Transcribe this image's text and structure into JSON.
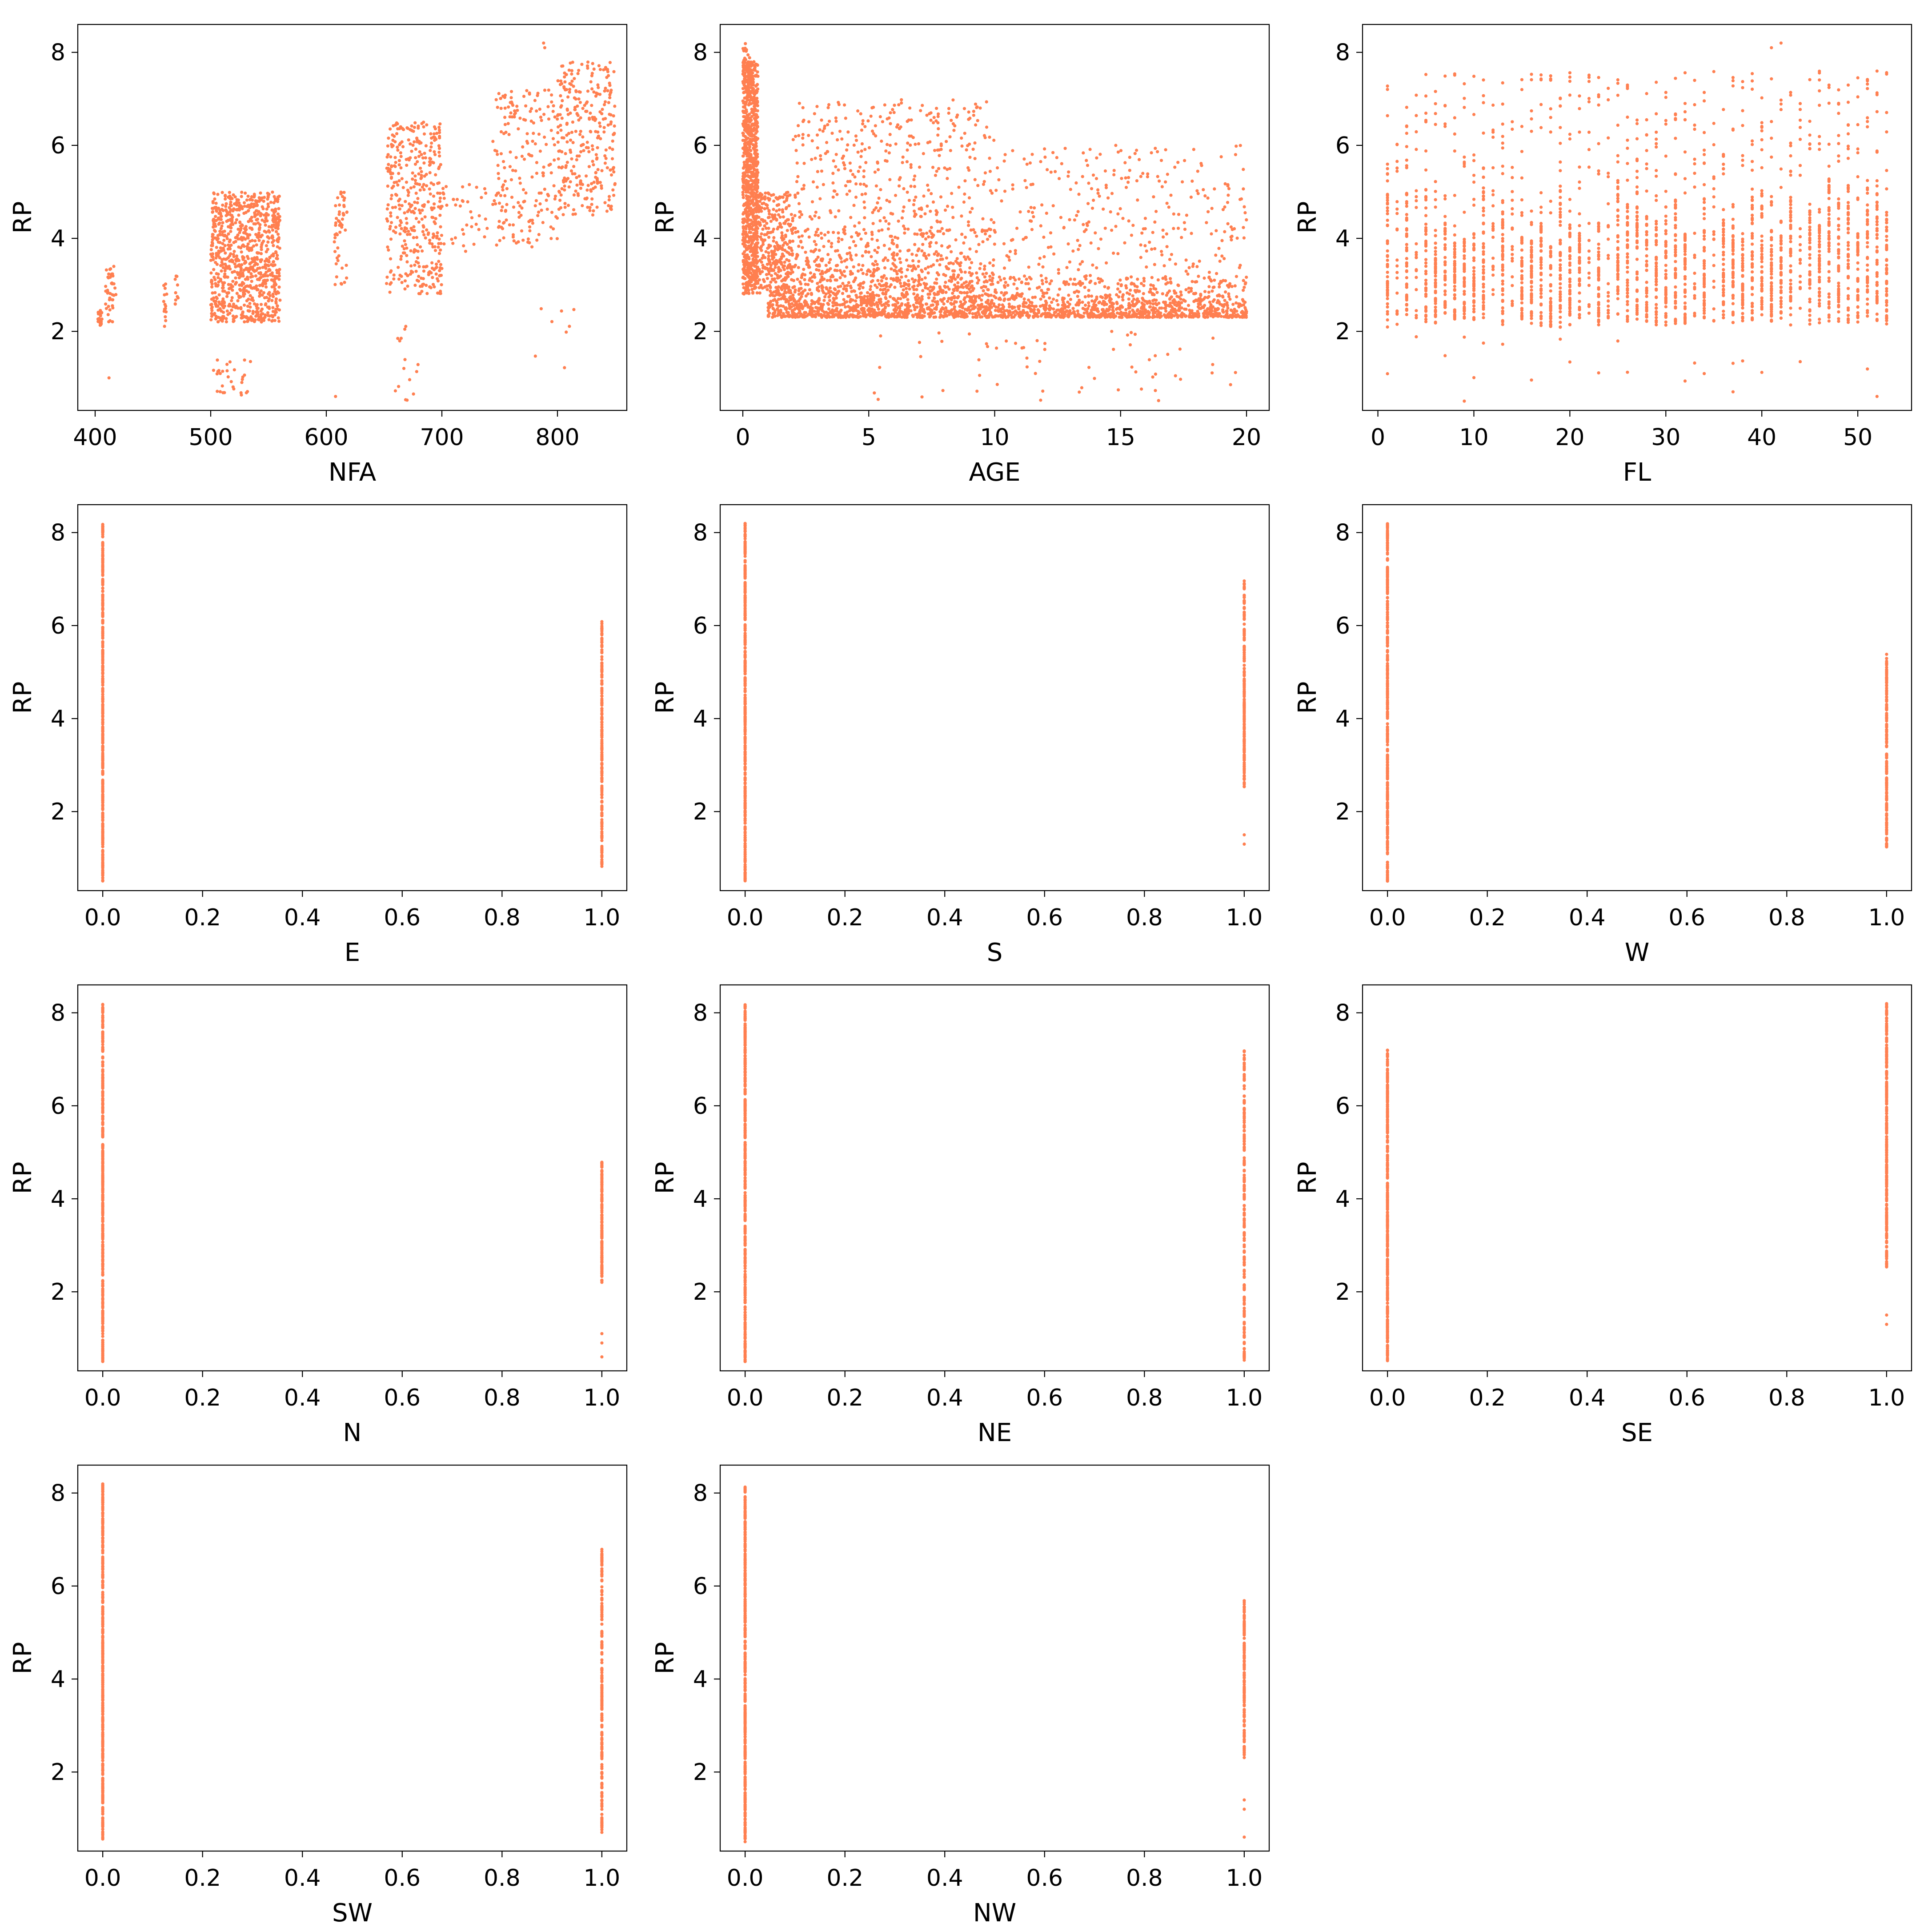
{
  "figure": {
    "marker_color": "#FF7F50",
    "background": "#ffffff"
  },
  "chart_data": [
    {
      "type": "scatter",
      "xlabel": "NFA",
      "ylabel": "RP",
      "xlim": [
        385,
        860
      ],
      "ylim": [
        0.3,
        8.6
      ],
      "xticks": [
        400,
        500,
        600,
        700,
        800
      ],
      "yticks": [
        2,
        4,
        6,
        8
      ],
      "clusters": [
        {
          "x": [
            402,
            406
          ],
          "y": [
            2.1,
            2.45
          ],
          "n": 25
        },
        {
          "x": [
            409,
            418
          ],
          "y": [
            2.2,
            3.4
          ],
          "n": 40
        },
        {
          "x": [
            459,
            462
          ],
          "y": [
            2.1,
            3.1
          ],
          "n": 15
        },
        {
          "x": [
            469,
            472
          ],
          "y": [
            2.5,
            3.2
          ],
          "n": 10
        },
        {
          "x": [
            500,
            560
          ],
          "y": [
            2.2,
            5.0
          ],
          "n": 900
        },
        {
          "x": [
            502,
            535
          ],
          "y": [
            0.6,
            1.5
          ],
          "n": 30
        },
        {
          "x": [
            607,
            618
          ],
          "y": [
            3.0,
            5.0
          ],
          "n": 50
        },
        {
          "x": [
            652,
            700
          ],
          "y": [
            2.8,
            6.5
          ],
          "n": 400
        },
        {
          "x": [
            655,
            680
          ],
          "y": [
            0.5,
            2.2
          ],
          "n": 15
        },
        {
          "x": [
            700,
            740
          ],
          "y": [
            3.7,
            5.2
          ],
          "n": 40
        },
        {
          "x": [
            744,
            800
          ],
          "y": [
            3.8,
            7.2
          ],
          "n": 200
        },
        {
          "x": [
            800,
            850
          ],
          "y": [
            4.5,
            7.8
          ],
          "n": 300
        },
        {
          "x": [
            780,
            820
          ],
          "y": [
            1.2,
            2.6
          ],
          "n": 8
        }
      ],
      "extra_points": [
        {
          "x": 788,
          "y": 8.2
        },
        {
          "x": 789,
          "y": 8.1
        },
        {
          "x": 412,
          "y": 1.0
        },
        {
          "x": 608,
          "y": 0.6
        }
      ]
    },
    {
      "type": "scatter",
      "xlabel": "AGE",
      "ylabel": "RP",
      "xlim": [
        -0.9,
        20.9
      ],
      "ylim": [
        0.3,
        8.6
      ],
      "xticks": [
        0,
        5,
        10,
        15,
        20
      ],
      "yticks": [
        2,
        4,
        6,
        8
      ],
      "clusters": [
        {
          "x": [
            0,
            0.6
          ],
          "y": [
            2.8,
            7.8
          ],
          "n": 900
        },
        {
          "x": [
            0,
            0.3
          ],
          "y": [
            7.0,
            8.2
          ],
          "n": 40
        },
        {
          "x": [
            0.5,
            2
          ],
          "y": [
            2.8,
            5.0
          ],
          "n": 300
        },
        {
          "x": [
            1,
            10
          ],
          "y": [
            2.3,
            4.2
          ],
          "n": 1500
        },
        {
          "x": [
            2,
            10
          ],
          "y": [
            4.0,
            7.0
          ],
          "n": 400
        },
        {
          "x": [
            10,
            20
          ],
          "y": [
            2.3,
            3.2
          ],
          "n": 1000
        },
        {
          "x": [
            10,
            20
          ],
          "y": [
            3.0,
            6.0
          ],
          "n": 300
        },
        {
          "x": [
            5,
            20
          ],
          "y": [
            0.5,
            2.0
          ],
          "n": 60
        }
      ],
      "extra_points": []
    },
    {
      "type": "scatter",
      "xlabel": "FL",
      "ylabel": "RP",
      "xlim": [
        -1.6,
        55.6
      ],
      "ylim": [
        0.3,
        8.6
      ],
      "xticks": [
        0,
        10,
        20,
        30,
        40,
        50
      ],
      "yticks": [
        2,
        4,
        6,
        8
      ],
      "discrete_x": [
        1,
        53
      ],
      "clusters": [],
      "extra_points": [
        {
          "x": 41,
          "y": 8.1
        },
        {
          "x": 42,
          "y": 8.2
        },
        {
          "x": 52,
          "y": 0.6
        },
        {
          "x": 37,
          "y": 0.7
        },
        {
          "x": 9,
          "y": 0.5
        }
      ]
    },
    {
      "type": "scatter",
      "xlabel": "E",
      "ylabel": "RP",
      "xlim": [
        -0.05,
        1.05
      ],
      "ylim": [
        0.3,
        8.6
      ],
      "xticks": [
        0.0,
        0.2,
        0.4,
        0.6,
        0.8,
        1.0
      ],
      "yticks": [
        2,
        4,
        6,
        8
      ],
      "clusters": [
        {
          "x": [
            0,
            0
          ],
          "y": [
            0.5,
            8.2
          ],
          "n": 400
        },
        {
          "x": [
            1,
            1
          ],
          "y": [
            0.8,
            6.1
          ],
          "n": 200
        }
      ],
      "extra_points": []
    },
    {
      "type": "scatter",
      "xlabel": "S",
      "ylabel": "RP",
      "xlim": [
        -0.05,
        1.05
      ],
      "ylim": [
        0.3,
        8.6
      ],
      "xticks": [
        0.0,
        0.2,
        0.4,
        0.6,
        0.8,
        1.0
      ],
      "yticks": [
        2,
        4,
        6,
        8
      ],
      "clusters": [
        {
          "x": [
            0,
            0
          ],
          "y": [
            0.5,
            8.2
          ],
          "n": 400
        },
        {
          "x": [
            1,
            1
          ],
          "y": [
            2.5,
            7.0
          ],
          "n": 200
        }
      ],
      "extra_points": [
        {
          "x": 1,
          "y": 1.3
        },
        {
          "x": 1,
          "y": 1.5
        }
      ]
    },
    {
      "type": "scatter",
      "xlabel": "W",
      "ylabel": "RP",
      "xlim": [
        -0.05,
        1.05
      ],
      "ylim": [
        0.3,
        8.6
      ],
      "xticks": [
        0.0,
        0.2,
        0.4,
        0.6,
        0.8,
        1.0
      ],
      "yticks": [
        2,
        4,
        6,
        8
      ],
      "clusters": [
        {
          "x": [
            0,
            0
          ],
          "y": [
            0.5,
            8.2
          ],
          "n": 400
        },
        {
          "x": [
            1,
            1
          ],
          "y": [
            1.2,
            5.4
          ],
          "n": 200
        }
      ],
      "extra_points": []
    },
    {
      "type": "scatter",
      "xlabel": "N",
      "ylabel": "RP",
      "xlim": [
        -0.05,
        1.05
      ],
      "ylim": [
        0.3,
        8.6
      ],
      "xticks": [
        0.0,
        0.2,
        0.4,
        0.6,
        0.8,
        1.0
      ],
      "yticks": [
        2,
        4,
        6,
        8
      ],
      "clusters": [
        {
          "x": [
            0,
            0
          ],
          "y": [
            0.5,
            8.2
          ],
          "n": 400
        },
        {
          "x": [
            1,
            1
          ],
          "y": [
            2.2,
            4.8
          ],
          "n": 150
        }
      ],
      "extra_points": [
        {
          "x": 1,
          "y": 0.6
        },
        {
          "x": 1,
          "y": 0.9
        },
        {
          "x": 1,
          "y": 1.1
        }
      ]
    },
    {
      "type": "scatter",
      "xlabel": "NE",
      "ylabel": "RP",
      "xlim": [
        -0.05,
        1.05
      ],
      "ylim": [
        0.3,
        8.6
      ],
      "xticks": [
        0.0,
        0.2,
        0.4,
        0.6,
        0.8,
        1.0
      ],
      "yticks": [
        2,
        4,
        6,
        8
      ],
      "clusters": [
        {
          "x": [
            0,
            0
          ],
          "y": [
            0.5,
            8.2
          ],
          "n": 400
        },
        {
          "x": [
            1,
            1
          ],
          "y": [
            0.5,
            7.2
          ],
          "n": 200
        }
      ],
      "extra_points": []
    },
    {
      "type": "scatter",
      "xlabel": "SE",
      "ylabel": "RP",
      "xlim": [
        -0.05,
        1.05
      ],
      "ylim": [
        0.3,
        8.6
      ],
      "xticks": [
        0.0,
        0.2,
        0.4,
        0.6,
        0.8,
        1.0
      ],
      "yticks": [
        2,
        4,
        6,
        8
      ],
      "clusters": [
        {
          "x": [
            0,
            0
          ],
          "y": [
            0.5,
            7.2
          ],
          "n": 400
        },
        {
          "x": [
            1,
            1
          ],
          "y": [
            2.5,
            8.2
          ],
          "n": 300
        }
      ],
      "extra_points": [
        {
          "x": 1,
          "y": 1.3
        },
        {
          "x": 1,
          "y": 1.5
        }
      ]
    },
    {
      "type": "scatter",
      "xlabel": "SW",
      "ylabel": "RP",
      "xlim": [
        -0.05,
        1.05
      ],
      "ylim": [
        0.3,
        8.6
      ],
      "xticks": [
        0.0,
        0.2,
        0.4,
        0.6,
        0.8,
        1.0
      ],
      "yticks": [
        2,
        4,
        6,
        8
      ],
      "clusters": [
        {
          "x": [
            0,
            0
          ],
          "y": [
            0.5,
            8.2
          ],
          "n": 400
        },
        {
          "x": [
            1,
            1
          ],
          "y": [
            0.7,
            6.8
          ],
          "n": 200
        }
      ],
      "extra_points": []
    },
    {
      "type": "scatter",
      "xlabel": "NW",
      "ylabel": "RP",
      "xlim": [
        -0.05,
        1.05
      ],
      "ylim": [
        0.3,
        8.6
      ],
      "xticks": [
        0.0,
        0.2,
        0.4,
        0.6,
        0.8,
        1.0
      ],
      "yticks": [
        2,
        4,
        6,
        8
      ],
      "clusters": [
        {
          "x": [
            0,
            0
          ],
          "y": [
            0.5,
            8.2
          ],
          "n": 400
        },
        {
          "x": [
            1,
            1
          ],
          "y": [
            2.3,
            5.7
          ],
          "n": 150
        }
      ],
      "extra_points": [
        {
          "x": 1,
          "y": 0.6
        },
        {
          "x": 1,
          "y": 1.2
        },
        {
          "x": 1,
          "y": 1.4
        }
      ]
    }
  ]
}
